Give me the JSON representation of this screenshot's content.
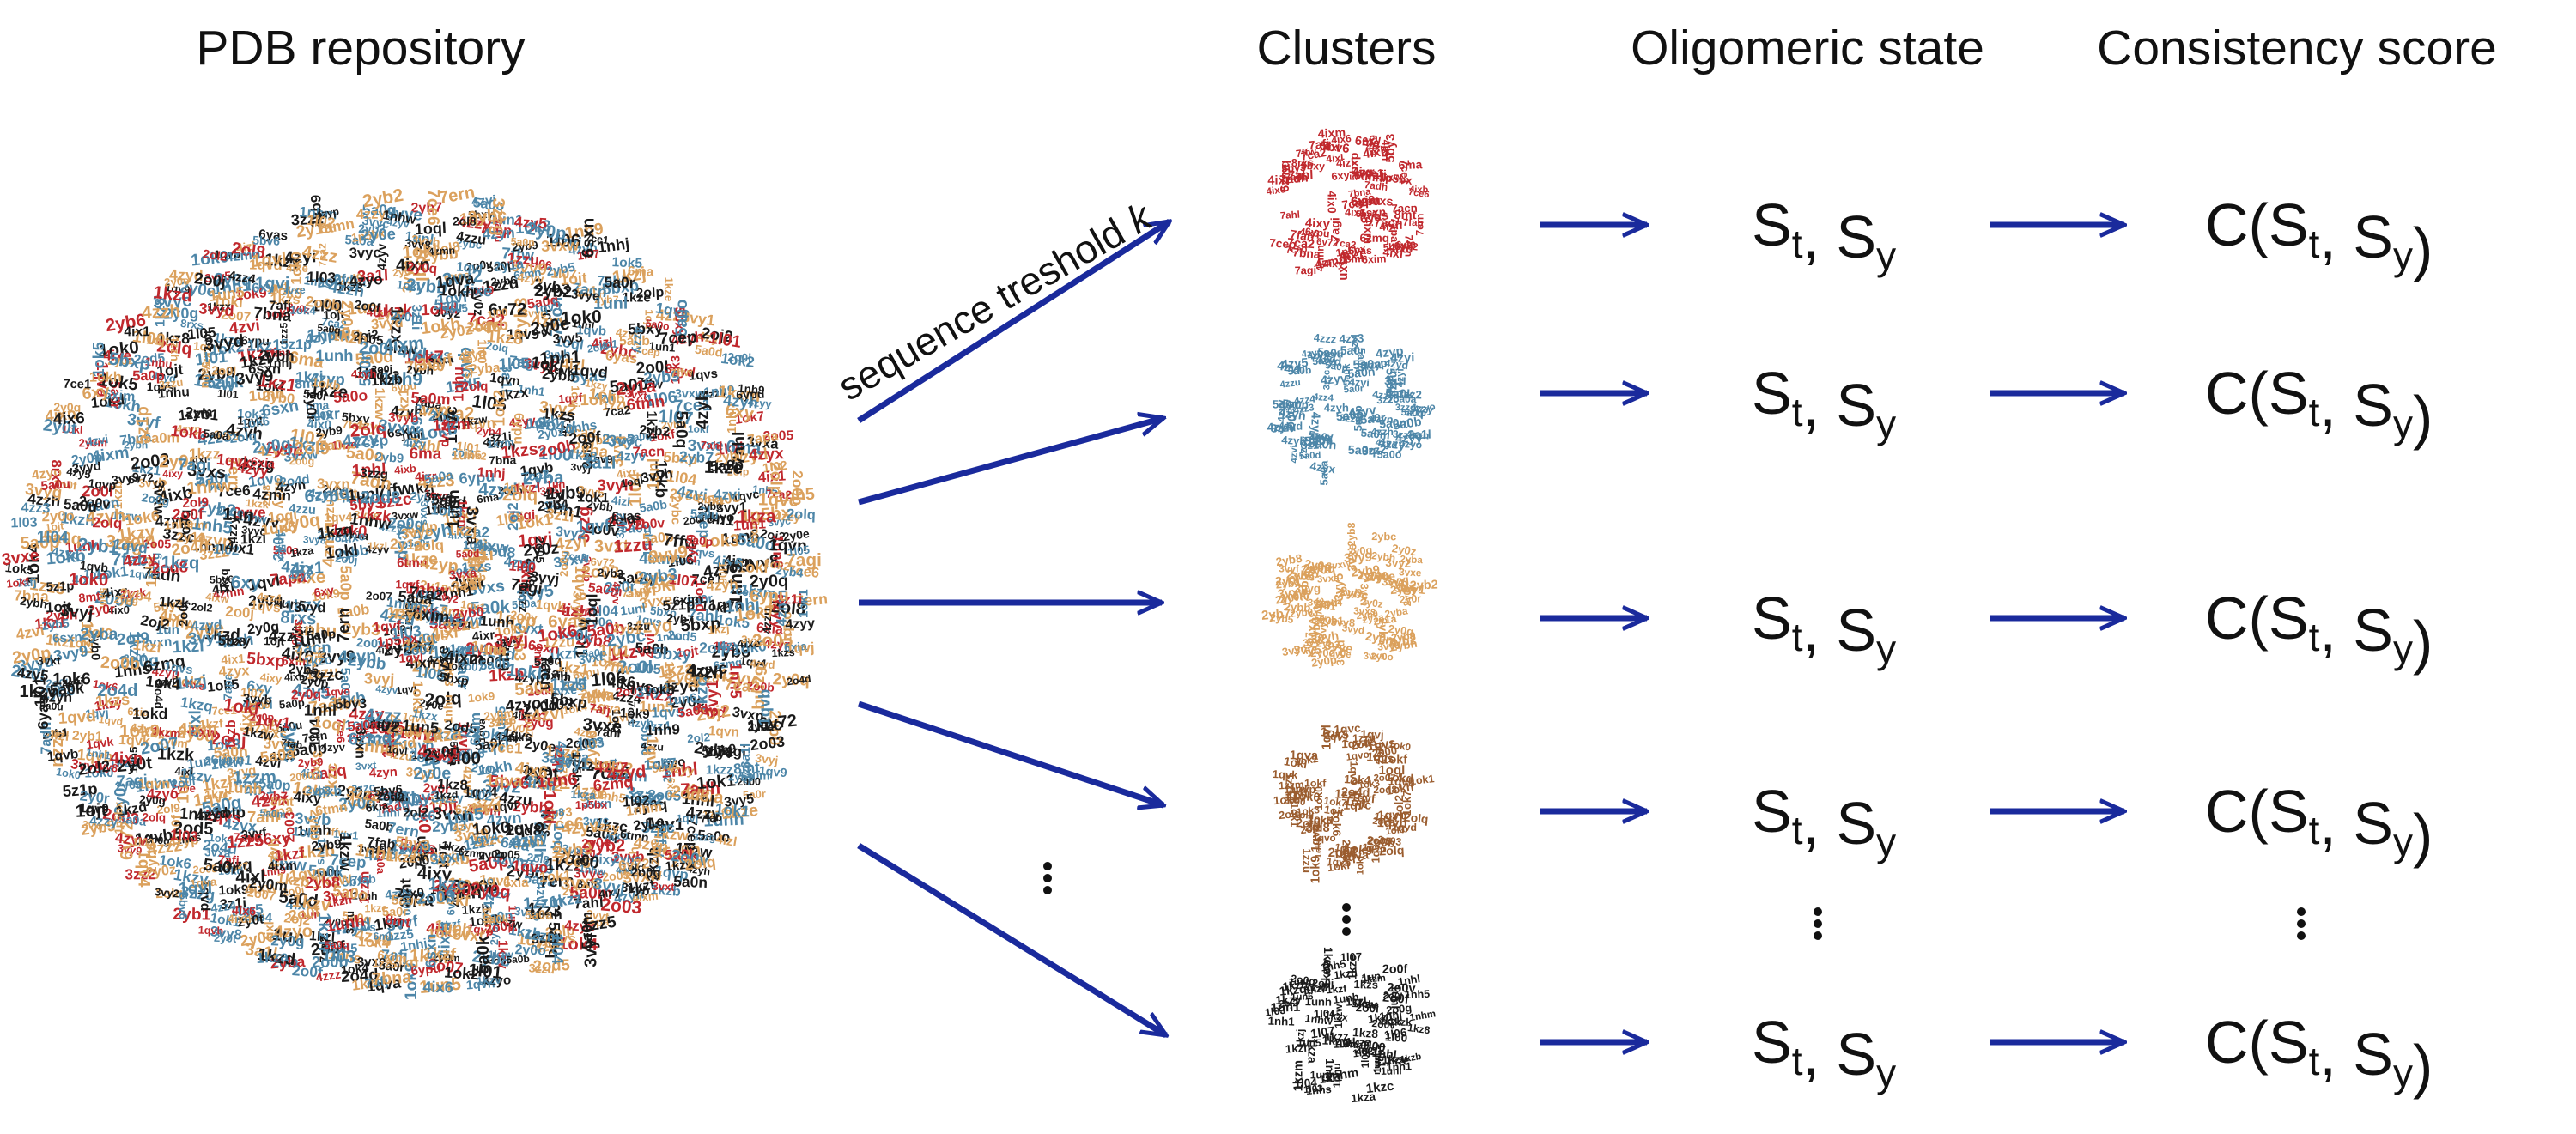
{
  "headers": {
    "pdb": "PDB repository",
    "clusters": "Clusters",
    "oligomeric": "Oligomeric state",
    "consistency": "Consistency score"
  },
  "edge_label": {
    "text": "sequence treshold ",
    "var": "k"
  },
  "state_label": {
    "s": "S",
    "sub_t": "t",
    "comma": ", ",
    "sub_y": "y"
  },
  "score_label": {
    "c": "C(",
    "s": "S",
    "sub_t": "t",
    "comma": ", ",
    "sub_y": "y",
    "close": ")"
  },
  "colors": {
    "arrow": "#1a2a9c",
    "text": "#111111",
    "red": "#c0282d",
    "blue": "#4d86a8",
    "tan": "#dba15d",
    "brown": "#9a5c2e",
    "black": "#1a1a1a"
  },
  "cluster_ids": [
    {
      "color": "red",
      "ids": [
        "6xia",
        "5by3",
        "4ix6",
        "4ix0",
        "6yas",
        "4ixw",
        "6v72",
        "1p5bx",
        "4ixy",
        "4ix1",
        "8mt",
        "6ypu",
        "4zmn",
        "5bxy",
        "7ce1",
        "4ixl",
        "4ixb",
        "7acn",
        "7cep",
        "7afj",
        "6xy",
        "7ahl",
        "7ca2",
        "7bna",
        "6sxn",
        "4ixm",
        "4ixr",
        "6zmq",
        "5bv6",
        "6xim",
        "7adh",
        "7ca2",
        "7apa",
        "7agi",
        "4ixn",
        "7ern",
        "8rxs",
        "7fab",
        "6ma",
        "4ixe",
        "7ffw",
        "5bxp",
        "4ixl",
        "7ce6",
        "4izl",
        "6tmn"
      ]
    },
    {
      "color": "blue",
      "ids": [
        "5a0q",
        "5a0p",
        "4zvi",
        "5a0d",
        "4zyp",
        "5a0r",
        "5a0m",
        "3zzg",
        "4zyd",
        "4zzz",
        "3zzu",
        "3zz2",
        "3a1l",
        "4zz3",
        "4zyy",
        "5a0r",
        "4zyn",
        "4zvi",
        "3zzc",
        "5a0o",
        "4zzh",
        "5a0q",
        "5a0b",
        "4zyx",
        "4zzu",
        "4zyi",
        "4zyv",
        "5a0n",
        "5a0u",
        "5a0p",
        "4zyh",
        "4zyh",
        "4zzy",
        "5a0a",
        "4zyp",
        "4zz4",
        "4zyo",
        "5a0k",
        "5a0a",
        "3z1i",
        "4zy5",
        "4zyd",
        "4zyd",
        "4zyv",
        "5z1p",
        "4zzy"
      ]
    },
    {
      "color": "tan",
      "ids": [
        "2yb9",
        "3vyd",
        "3vyh",
        "3vxt",
        "3vyg",
        "2yb6",
        "2yba",
        "2ybb",
        "3vyb",
        "3vy9",
        "2yb3",
        "2yb7",
        "3vxw",
        "2y1a",
        "2y0q",
        "2y0e",
        "3vxe",
        "2y0m",
        "2yb0",
        "2y0t",
        "3vxa",
        "2yb5",
        "3vy1",
        "2yb8",
        "2y0e",
        "2yb1",
        "3vy8",
        "2yb2",
        "2ybh",
        "3vy2",
        "3vyj",
        "2y0p",
        "2y0g",
        "2yb4",
        "2y0z",
        "3vxs",
        "2y0r",
        "3vy5",
        "2ybc",
        "3vye",
        "3vyc",
        "3vxn",
        "2y0q",
        "2y0o",
        "3vyf",
        "2yb9"
      ]
    },
    {
      "color": "brown",
      "ids": [
        "1okd",
        "1qvc",
        "1ok0",
        "1qvs",
        "1okf",
        "1ok9",
        "1ok6",
        "1qva",
        "1oql",
        "1okb",
        "1qvb",
        "1ok1",
        "1ojt",
        "2o07",
        "1ok7",
        "2olq",
        "1qvo",
        "1qvk",
        "1qvj",
        "1zzu",
        "2ol8",
        "1okl",
        "2ol2",
        "1ok5",
        "1qvp",
        "1zzm",
        "2od8",
        "1qvs",
        "1ok3",
        "1qvd",
        "1okf",
        "2000",
        "1ok4",
        "2ol9",
        "2od5",
        "1qvf",
        "2olq",
        "1qvn",
        "2o05",
        "1qvb",
        "1zz5",
        "2olp",
        "1ok2",
        "1qv4",
        "2o4d",
        "2o0b",
        "1qv9",
        "1ok0",
        "1okh",
        "1qvl",
        "1ojt",
        "2o03",
        "1qv1"
      ]
    },
    {
      "color": "black",
      "ids": [
        "1l02",
        "1kzw",
        "1l07",
        "1nhs",
        "1l04",
        "1nhl",
        "1kzh",
        "1kzk",
        "1kzv",
        "1l00",
        "2o0g",
        "1kzm",
        "1nh5",
        "1kzy",
        "1unh",
        "1un1",
        "1nhj",
        "1kzd",
        "1kzl",
        "2oj2",
        "1nh1",
        "1kz8",
        "1nhu",
        "1l03",
        "2o0l",
        "1kzz",
        "1kzc",
        "1kza",
        "1unh",
        "1unl",
        "1un",
        "2o0v",
        "1nhm",
        "1kzb",
        "1kzq",
        "1kzf",
        "1l05",
        "1nhw",
        "1kzj",
        "1un6",
        "2o0f",
        "1kzw",
        "1l06",
        "1kze",
        "1un5",
        "2o0j",
        "1nh9",
        "1kzs",
        "1kzx",
        "1l01",
        "2o0f",
        "1kz1"
      ]
    }
  ]
}
